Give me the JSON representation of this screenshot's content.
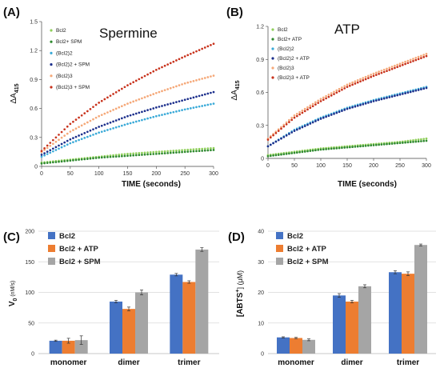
{
  "chart_data": [
    {
      "panel": "(A)",
      "type": "scatter",
      "title": "Spermine",
      "xlabel": "TIME (seconds)",
      "ylabel": "ΔA",
      "ylabel_sub": "415",
      "xlim": [
        0,
        300
      ],
      "ylim": [
        0,
        1.5
      ],
      "xticks": [
        "0",
        "50",
        "100",
        "150",
        "200",
        "250",
        "300"
      ],
      "yticks": [
        "0",
        "0.3",
        "0.6",
        "0.9",
        "1.2",
        "1.5"
      ],
      "legend": "top-left",
      "series": [
        {
          "name": "Bcl2",
          "color": "#8fcf5a",
          "x": [
            0,
            50,
            100,
            150,
            200,
            250,
            300
          ],
          "y": [
            0.04,
            0.07,
            0.1,
            0.13,
            0.15,
            0.17,
            0.19
          ]
        },
        {
          "name": "Bcl2+ SPM",
          "color": "#2f8a2f",
          "x": [
            0,
            50,
            100,
            150,
            200,
            250,
            300
          ],
          "y": [
            0.03,
            0.06,
            0.09,
            0.11,
            0.13,
            0.15,
            0.17
          ]
        },
        {
          "name": "(Bcl2)2",
          "color": "#3aaad8",
          "x": [
            0,
            50,
            100,
            150,
            200,
            250,
            300
          ],
          "y": [
            0.1,
            0.24,
            0.35,
            0.44,
            0.52,
            0.59,
            0.65
          ]
        },
        {
          "name": "(Bcl2)2 + SPM",
          "color": "#1c2f8c",
          "x": [
            0,
            50,
            100,
            150,
            200,
            250,
            300
          ],
          "y": [
            0.12,
            0.28,
            0.41,
            0.52,
            0.61,
            0.69,
            0.77
          ]
        },
        {
          "name": "(Bcl2)3",
          "color": "#f5a878",
          "x": [
            0,
            50,
            100,
            150,
            200,
            250,
            300
          ],
          "y": [
            0.15,
            0.36,
            0.52,
            0.65,
            0.76,
            0.86,
            0.94
          ]
        },
        {
          "name": "(Bcl2)3 + SPM",
          "color": "#c8321c",
          "x": [
            0,
            50,
            100,
            150,
            200,
            250,
            300
          ],
          "y": [
            0.16,
            0.44,
            0.66,
            0.84,
            1.0,
            1.14,
            1.27
          ]
        }
      ]
    },
    {
      "panel": "(B)",
      "type": "scatter",
      "title": "ATP",
      "xlabel": "TIME (seconds)",
      "ylabel": "ΔA",
      "ylabel_sub": "415",
      "xlim": [
        0,
        300
      ],
      "ylim": [
        0,
        1.2
      ],
      "xticks": [
        "0",
        "50",
        "100",
        "150",
        "200",
        "250",
        "300"
      ],
      "yticks": [
        "0",
        "0.3",
        "0.6",
        "0.9",
        "1.2"
      ],
      "legend": "top-left",
      "series": [
        {
          "name": "Bcl2",
          "color": "#8fcf5a",
          "x": [
            0,
            50,
            100,
            150,
            200,
            250,
            300
          ],
          "y": [
            0.03,
            0.06,
            0.09,
            0.11,
            0.13,
            0.15,
            0.18
          ]
        },
        {
          "name": "Bcl2+ ATP",
          "color": "#2f8a2f",
          "x": [
            0,
            50,
            100,
            150,
            200,
            250,
            300
          ],
          "y": [
            0.02,
            0.05,
            0.08,
            0.1,
            0.12,
            0.14,
            0.16
          ]
        },
        {
          "name": "(Bcl2)2",
          "color": "#3aaad8",
          "x": [
            0,
            50,
            100,
            150,
            200,
            250,
            300
          ],
          "y": [
            0.11,
            0.26,
            0.37,
            0.46,
            0.53,
            0.59,
            0.65
          ]
        },
        {
          "name": "(Bcl2)2 + ATP",
          "color": "#1c2f8c",
          "x": [
            0,
            50,
            100,
            150,
            200,
            250,
            300
          ],
          "y": [
            0.11,
            0.25,
            0.36,
            0.45,
            0.52,
            0.58,
            0.64
          ]
        },
        {
          "name": "(Bcl2)3",
          "color": "#f5a878",
          "x": [
            0,
            50,
            100,
            150,
            200,
            250,
            300
          ],
          "y": [
            0.18,
            0.39,
            0.54,
            0.67,
            0.77,
            0.86,
            0.95
          ]
        },
        {
          "name": "(Bcl2)3 + ATP",
          "color": "#c8321c",
          "x": [
            0,
            50,
            100,
            150,
            200,
            250,
            300
          ],
          "y": [
            0.17,
            0.37,
            0.52,
            0.65,
            0.75,
            0.84,
            0.93
          ]
        }
      ]
    },
    {
      "panel": "(C)",
      "type": "bar",
      "ylabel": "V",
      "ylabel_sub": "0",
      "ylabel_unit": " (nM/s)",
      "ylim": [
        0,
        200
      ],
      "yticks": [
        "0",
        "50",
        "100",
        "150",
        "200"
      ],
      "legend": "top-left",
      "categories": [
        "monomer",
        "dimer",
        "trimer"
      ],
      "series": [
        {
          "name": "Bcl2",
          "color": "#4472c4",
          "values": [
            21,
            85,
            129
          ],
          "errors": [
            1,
            2,
            2
          ]
        },
        {
          "name": "Bcl2 + ATP",
          "color": "#ed7d31",
          "values": [
            21,
            73,
            117
          ],
          "errors": [
            4,
            3,
            2
          ]
        },
        {
          "name": "Bcl2 + SPM",
          "color": "#a5a5a5",
          "values": [
            22,
            100,
            170
          ],
          "errors": [
            7,
            4,
            3
          ]
        }
      ]
    },
    {
      "panel": "(D)",
      "type": "bar",
      "ylabel": "[ABTS",
      "ylabel_sup": "+",
      "ylabel_unit": "] (μM)",
      "ylim": [
        0,
        40
      ],
      "yticks": [
        "0",
        "10",
        "20",
        "30",
        "40"
      ],
      "legend": "top-left",
      "categories": [
        "monomer",
        "dimer",
        "trimer"
      ],
      "series": [
        {
          "name": "Bcl2",
          "color": "#4472c4",
          "values": [
            5.3,
            19,
            26.6
          ],
          "errors": [
            0.2,
            0.6,
            0.5
          ]
        },
        {
          "name": "Bcl2 + ATP",
          "color": "#ed7d31",
          "values": [
            5.1,
            17,
            26.1
          ],
          "errors": [
            0.2,
            0.4,
            0.6
          ]
        },
        {
          "name": "Bcl2 + SPM",
          "color": "#a5a5a5",
          "values": [
            4.5,
            22,
            35.5
          ],
          "errors": [
            0.3,
            0.5,
            0.3
          ]
        }
      ]
    }
  ]
}
